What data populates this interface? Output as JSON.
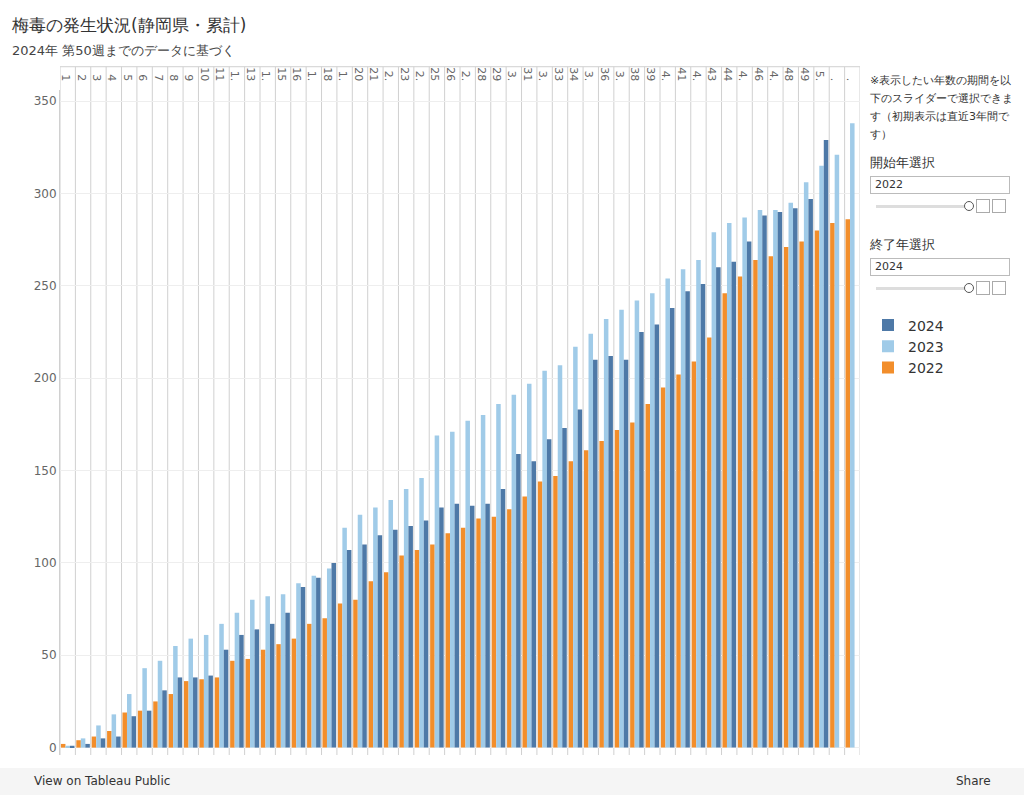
{
  "chart_data": {
    "type": "bar",
    "title": "梅毒の発生状況(静岡県・累計)",
    "subtitle": "2024年 第50週までのデータに基づく",
    "categories": [
      "1",
      "2",
      "3",
      "4",
      "5",
      "6",
      "7",
      "8",
      "9",
      "10",
      "11",
      "1.",
      "13",
      "1.",
      "15",
      "16",
      "1.",
      "18",
      "1.",
      "20",
      "21",
      "2.",
      "23",
      "2.",
      "25",
      "26",
      "2.",
      "28",
      "29",
      "3.",
      "31",
      "3.",
      "33",
      "34",
      "3.",
      "36",
      "3.",
      "38",
      "39",
      "4.",
      "41",
      "4.",
      "43",
      "44",
      "4.",
      "46",
      "4.",
      "48",
      "49",
      "5.",
      ".",
      "."
    ],
    "series": [
      {
        "name": "2024",
        "color": "#4e79a7",
        "values": [
          1,
          2,
          5,
          6,
          17,
          20,
          31,
          38,
          38,
          39,
          53,
          61,
          64,
          67,
          73,
          87,
          92,
          100,
          107,
          110,
          115,
          118,
          120,
          123,
          130,
          132,
          131,
          132,
          140,
          159,
          155,
          167,
          173,
          183,
          210,
          212,
          210,
          225,
          229,
          238,
          247,
          251,
          260,
          263,
          274,
          288,
          290,
          292,
          297,
          329,
          null,
          null
        ]
      },
      {
        "name": "2023",
        "color": "#a0cbe8",
        "values": [
          1,
          5,
          12,
          18,
          29,
          43,
          47,
          55,
          59,
          61,
          67,
          73,
          80,
          82,
          83,
          89,
          93,
          97,
          119,
          126,
          130,
          134,
          140,
          146,
          169,
          171,
          177,
          180,
          186,
          191,
          197,
          204,
          207,
          217,
          224,
          232,
          237,
          242,
          246,
          254,
          259,
          264,
          279,
          284,
          287,
          291,
          291,
          295,
          306,
          315,
          321,
          338
        ]
      },
      {
        "name": "2022",
        "color": "#f28e2b",
        "values": [
          2,
          4,
          6,
          9,
          19,
          20,
          25,
          29,
          36,
          37,
          38,
          47,
          48,
          53,
          56,
          59,
          67,
          70,
          78,
          80,
          90,
          95,
          104,
          107,
          110,
          116,
          119,
          124,
          125,
          129,
          136,
          144,
          147,
          155,
          161,
          166,
          172,
          176,
          186,
          195,
          202,
          209,
          222,
          246,
          255,
          264,
          266,
          271,
          274,
          280,
          284,
          286
        ]
      }
    ],
    "ylim": [
      -4,
      356
    ],
    "yticks": [
      0,
      50,
      100,
      150,
      200,
      250,
      300,
      350
    ],
    "grid": true,
    "legend": "right",
    "annotations": {
      "note": "※表示したい年数の期間を以下のスライダーで選択できます（初期表示は直近3年間です）",
      "start_label": "開始年選択",
      "start_value": "2022",
      "end_label": "終了年選択",
      "end_value": "2024",
      "toolbar_left": "View on Tableau Public",
      "toolbar_right": "Share"
    }
  }
}
